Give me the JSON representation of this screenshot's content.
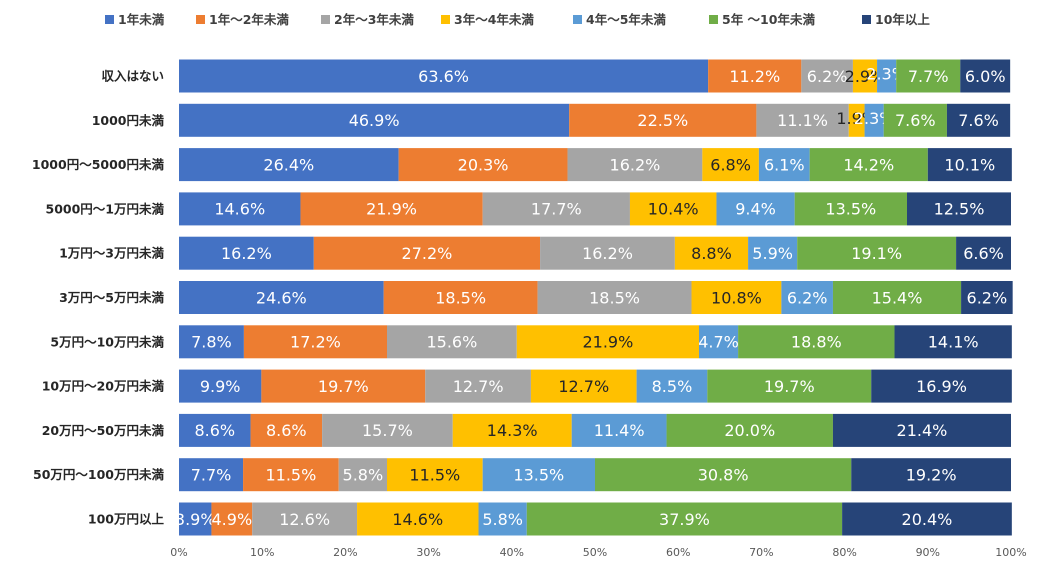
{
  "chart_data": {
    "type": "bar",
    "orientation": "horizontal",
    "stacked": "percent",
    "categories": [
      "収入はない",
      "1000円未満",
      "1000円～5000円未満",
      "5000円～1万円未満",
      "1万円～3万円未満",
      "3万円～5万円未満",
      "5万円～10万円未満",
      "10万円～20万円未満",
      "20万円～50万円未満",
      "50万円～100万円未満",
      "100万円以上"
    ],
    "series": [
      {
        "name": "1年未満",
        "color": "#4472C4",
        "label_color": "#ffffff",
        "values": [
          63.6,
          46.9,
          26.4,
          14.6,
          16.2,
          24.6,
          7.8,
          9.9,
          8.6,
          7.7,
          3.9
        ]
      },
      {
        "name": "1年～2年未満",
        "color": "#ED7D31",
        "label_color": "#ffffff",
        "values": [
          11.2,
          22.5,
          20.3,
          21.9,
          27.2,
          18.5,
          17.2,
          19.7,
          8.6,
          11.5,
          4.9
        ]
      },
      {
        "name": "2年～3年未満",
        "color": "#A5A5A5",
        "label_color": "#ffffff",
        "values": [
          6.2,
          11.1,
          16.2,
          17.7,
          16.2,
          18.5,
          15.6,
          12.7,
          15.7,
          5.8,
          12.6
        ]
      },
      {
        "name": "3年～4年未満",
        "color": "#FFC000",
        "label_color": "#262626",
        "values": [
          2.9,
          1.9,
          6.8,
          10.4,
          8.8,
          10.8,
          21.9,
          12.7,
          14.3,
          11.5,
          14.6
        ]
      },
      {
        "name": "4年～5年未満",
        "color": "#5B9BD5",
        "label_color": "#ffffff",
        "values": [
          2.3,
          2.3,
          6.1,
          9.4,
          5.9,
          6.2,
          4.7,
          8.5,
          11.4,
          13.5,
          5.8
        ]
      },
      {
        "name": "5年 ～10年未満",
        "color": "#70AD47",
        "label_color": "#ffffff",
        "values": [
          7.7,
          7.6,
          14.2,
          13.5,
          19.1,
          15.4,
          18.8,
          19.7,
          20.0,
          30.8,
          37.9
        ]
      },
      {
        "name": "10年以上",
        "color": "#264478",
        "label_color": "#ffffff",
        "values": [
          6.0,
          7.6,
          10.1,
          12.5,
          6.6,
          6.2,
          14.1,
          16.9,
          21.4,
          19.2,
          20.4
        ]
      }
    ],
    "x_ticks": [
      "0%",
      "10%",
      "20%",
      "30%",
      "40%",
      "50%",
      "60%",
      "70%",
      "80%",
      "90%",
      "100%"
    ],
    "xlim": [
      0,
      100
    ],
    "value_format": "percent_1dp",
    "legend_position": "top",
    "grid": false
  }
}
